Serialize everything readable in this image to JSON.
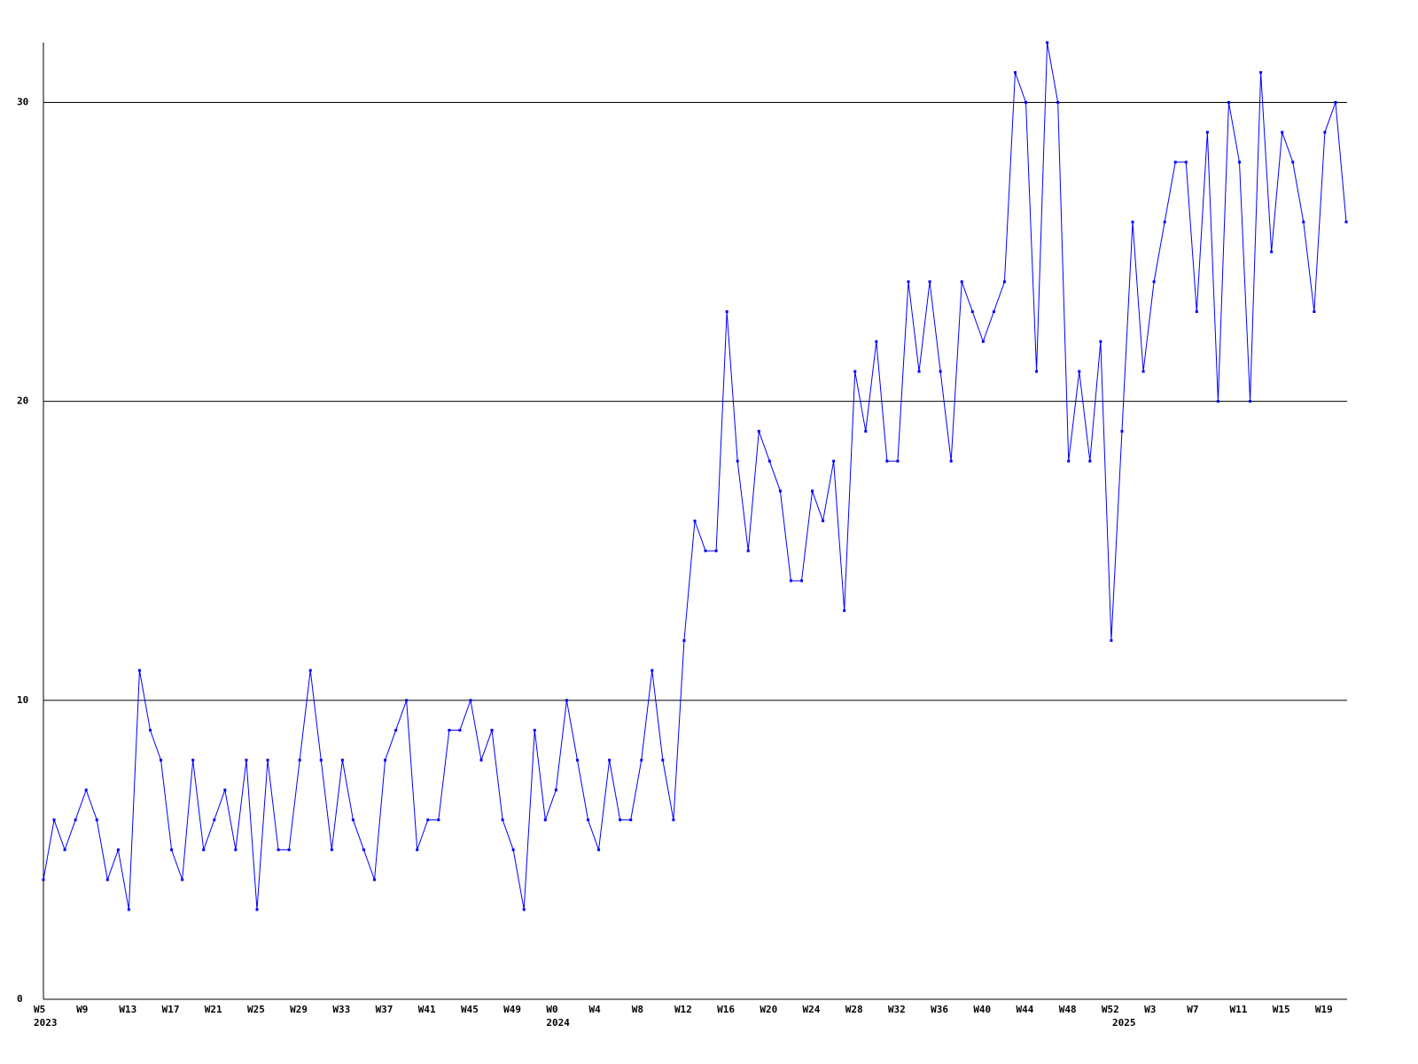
{
  "chart_data": {
    "type": "line",
    "categories": [
      "W5",
      null,
      null,
      null,
      "W9",
      null,
      null,
      null,
      "W13",
      null,
      null,
      null,
      "W17",
      null,
      null,
      null,
      "W21",
      null,
      null,
      null,
      "W25",
      null,
      null,
      null,
      "W29",
      null,
      null,
      null,
      "W33",
      null,
      null,
      null,
      "W37",
      null,
      null,
      null,
      "W41",
      null,
      null,
      null,
      "W45",
      null,
      null,
      null,
      "W49",
      null,
      null,
      null,
      "W0",
      null,
      null,
      null,
      "W4",
      null,
      null,
      null,
      "W8",
      null,
      null,
      null,
      "W12",
      null,
      null,
      null,
      "W16",
      null,
      null,
      null,
      "W20",
      null,
      null,
      null,
      "W24",
      null,
      null,
      null,
      "W28",
      null,
      null,
      null,
      "W32",
      null,
      null,
      null,
      "W36",
      null,
      null,
      null,
      "W40",
      null,
      null,
      null,
      "W44",
      null,
      null,
      null,
      "W48",
      null,
      null,
      null,
      "W52",
      null,
      null,
      null,
      "W3",
      null,
      null,
      null,
      "W7",
      null,
      null,
      null,
      "W11",
      null,
      null,
      null,
      "W15",
      null,
      null,
      null,
      "W19",
      null,
      null
    ],
    "years": [
      "2023",
      null,
      null,
      null,
      null,
      null,
      null,
      null,
      null,
      null,
      null,
      null,
      null,
      null,
      null,
      null,
      null,
      null,
      null,
      null,
      null,
      null,
      null,
      null,
      null,
      null,
      null,
      null,
      null,
      null,
      null,
      null,
      null,
      null,
      null,
      null,
      null,
      null,
      null,
      null,
      null,
      null,
      null,
      null,
      null,
      null,
      null,
      null,
      "2024",
      null,
      null,
      null,
      null,
      null,
      null,
      null,
      null,
      null,
      null,
      null,
      null,
      null,
      null,
      null,
      null,
      null,
      null,
      null,
      null,
      null,
      null,
      null,
      null,
      null,
      null,
      null,
      null,
      null,
      null,
      null,
      null,
      null,
      null,
      null,
      null,
      null,
      null,
      null,
      null,
      null,
      null,
      null,
      null,
      null,
      null,
      null,
      null,
      null,
      null,
      null,
      null,
      "2025",
      null,
      null,
      null,
      null,
      null,
      null,
      null,
      null,
      null,
      null,
      null,
      null,
      null,
      null,
      null,
      null,
      null,
      null,
      null,
      null,
      null
    ],
    "series": [
      {
        "color": "#0000ff",
        "values": [
          4,
          6,
          5,
          6,
          7,
          6,
          4,
          5,
          3,
          11,
          9,
          8,
          5,
          4,
          8,
          5,
          6,
          7,
          5,
          8,
          3,
          8,
          5,
          5,
          8,
          11,
          8,
          5,
          8,
          6,
          5,
          4,
          8,
          9,
          10,
          5,
          6,
          6,
          9,
          9,
          10,
          8,
          9,
          6,
          5,
          3,
          9,
          6,
          7,
          10,
          8,
          6,
          5,
          8,
          6,
          6,
          8,
          11,
          8,
          6,
          12,
          16,
          15,
          15,
          23,
          18,
          15,
          19,
          18,
          17,
          14,
          14,
          17,
          16,
          18,
          13,
          21,
          19,
          22,
          18,
          18,
          24,
          21,
          24,
          21,
          18,
          24,
          23,
          22,
          23,
          24,
          31,
          30,
          21,
          32,
          30,
          18,
          21,
          18,
          22,
          12,
          19,
          26,
          21,
          24,
          26,
          28,
          28,
          23,
          29,
          20,
          30,
          28,
          20,
          31,
          25,
          29,
          28,
          26,
          23,
          29,
          30,
          26
        ]
      }
    ],
    "ylim": [
      0,
      32
    ],
    "yticks": [
      0,
      10,
      20,
      30
    ],
    "grid": true
  }
}
